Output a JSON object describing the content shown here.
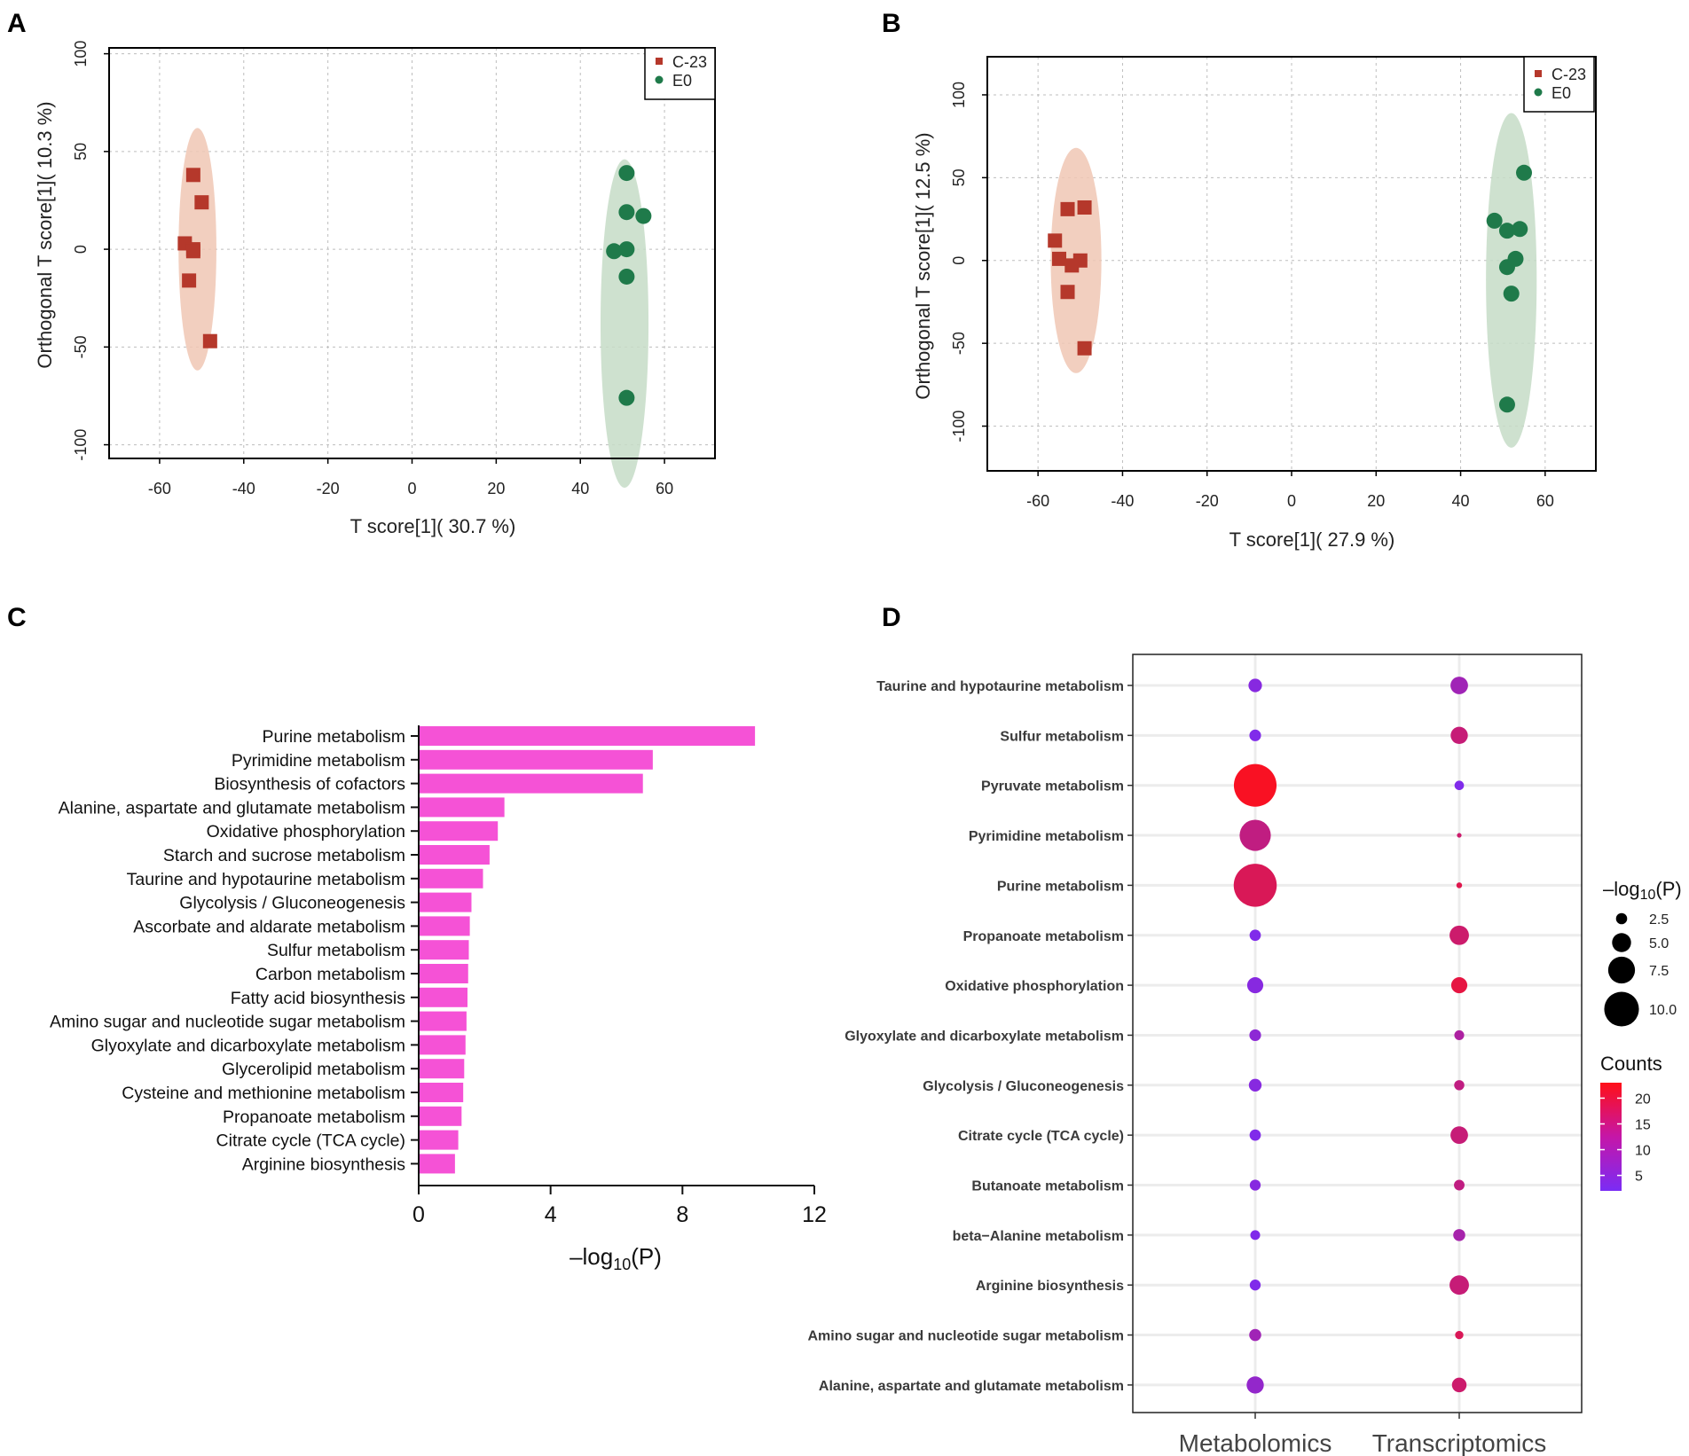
{
  "panels": {
    "a": "A",
    "b": "B",
    "c": "C",
    "d": "D"
  },
  "colors": {
    "c23": "#b5382b",
    "e0": "#1f7a4a",
    "c23_ellipse": "#f0c7b4",
    "e0_ellipse": "#c5dcc7",
    "bar": "#f552d6",
    "count_low": "#7a2cf5",
    "count_high": "#ff1018"
  },
  "chart_data": [
    {
      "id": "A",
      "type": "scatter",
      "xlabel": "T score[1]( 30.7 %)",
      "ylabel": "Orthogonal T score[1]( 10.3 %)",
      "xlim": [
        -72,
        72
      ],
      "ylim": [
        -107,
        103
      ],
      "xticks": [
        -60,
        -40,
        -20,
        0,
        20,
        40,
        60
      ],
      "yticks": [
        -100,
        -50,
        0,
        50,
        100
      ],
      "legend": [
        "C-23",
        "E0"
      ],
      "series": [
        {
          "name": "C-23",
          "marker": "square",
          "points": [
            [
              -52,
              38
            ],
            [
              -50,
              24
            ],
            [
              -54,
              3
            ],
            [
              -52,
              0
            ],
            [
              -52,
              -1
            ],
            [
              -53,
              -16
            ],
            [
              -48,
              -47
            ]
          ],
          "ellipse": {
            "cx": -51,
            "cy": 0,
            "rx": 4.5,
            "ry": 62
          }
        },
        {
          "name": "E0",
          "marker": "circle",
          "points": [
            [
              51,
              39
            ],
            [
              51,
              19
            ],
            [
              55,
              17
            ],
            [
              48,
              -1
            ],
            [
              51,
              0
            ],
            [
              51,
              -14
            ],
            [
              51,
              -76
            ]
          ],
          "ellipse": {
            "cx": 50.5,
            "cy": -38,
            "rx": 5.7,
            "ry": 84
          }
        }
      ]
    },
    {
      "id": "B",
      "type": "scatter",
      "xlabel": "T score[1]( 27.9 %)",
      "ylabel": "Orthogonal T score[1]( 12.5 %)",
      "xlim": [
        -72,
        72
      ],
      "ylim": [
        -127,
        123
      ],
      "xticks": [
        -60,
        -40,
        -20,
        0,
        20,
        40,
        60
      ],
      "yticks": [
        -100,
        -50,
        0,
        50,
        100
      ],
      "legend": [
        "C-23",
        "E0"
      ],
      "series": [
        {
          "name": "C-23",
          "marker": "square",
          "points": [
            [
              -53,
              31
            ],
            [
              -49,
              32
            ],
            [
              -56,
              12
            ],
            [
              -55,
              1
            ],
            [
              -50,
              0
            ],
            [
              -52,
              -3
            ],
            [
              -53,
              -19
            ],
            [
              -49,
              -53
            ]
          ],
          "ellipse": {
            "cx": -51,
            "cy": 0,
            "rx": 6,
            "ry": 68
          }
        },
        {
          "name": "E0",
          "marker": "circle",
          "points": [
            [
              55,
              53
            ],
            [
              48,
              24
            ],
            [
              51,
              18
            ],
            [
              54,
              19
            ],
            [
              51,
              -4
            ],
            [
              53,
              1
            ],
            [
              52,
              -20
            ],
            [
              51,
              -87
            ]
          ],
          "ellipse": {
            "cx": 52,
            "cy": -12,
            "rx": 6,
            "ry": 101
          }
        }
      ]
    },
    {
      "id": "C",
      "type": "bar",
      "orientation": "horizontal",
      "xlabel_main": "–log",
      "xlabel_sub": "10",
      "xlabel_end": "(P)",
      "xlim": [
        0,
        12
      ],
      "xticks": [
        0,
        4,
        8,
        12
      ],
      "categories": [
        "Purine metabolism",
        "Pyrimidine metabolism",
        "Biosynthesis of cofactors",
        "Alanine, aspartate and glutamate metabolism",
        "Oxidative phosphorylation",
        "Starch and sucrose metabolism",
        "Taurine and hypotaurine metabolism",
        "Glycolysis / Gluconeogenesis",
        "Ascorbate and aldarate metabolism",
        "Sulfur metabolism",
        "Carbon metabolism",
        "Fatty acid biosynthesis",
        "Amino sugar and nucleotide sugar metabolism",
        "Glyoxylate and dicarboxylate metabolism",
        "Glycerolipid metabolism",
        "Cysteine and methionine metabolism",
        "Propanoate metabolism",
        "Citrate cycle (TCA cycle)",
        "Arginine biosynthesis"
      ],
      "values": [
        10.2,
        7.1,
        6.8,
        2.6,
        2.4,
        2.15,
        1.95,
        1.6,
        1.55,
        1.52,
        1.5,
        1.48,
        1.45,
        1.42,
        1.38,
        1.35,
        1.3,
        1.2,
        1.1
      ]
    },
    {
      "id": "D",
      "type": "bubble",
      "columns": [
        "Metabolomics",
        "Transcriptomics"
      ],
      "categories": [
        "Taurine and hypotaurine metabolism",
        "Sulfur metabolism",
        "Pyruvate metabolism",
        "Pyrimidine metabolism",
        "Purine metabolism",
        "Propanoate metabolism",
        "Oxidative phosphorylation",
        "Glyoxylate and dicarboxylate metabolism",
        "Glycolysis / Gluconeogenesis",
        "Citrate cycle (TCA cycle)",
        "Butanoate metabolism",
        "beta−Alanine metabolism",
        "Arginine biosynthesis",
        "Amino sugar and nucleotide sugar metabolism",
        "Alanine, aspartate and glutamate metabolism"
      ],
      "metabolomics": {
        "log10p": [
          2.6,
          2.1,
          10.5,
          7.4,
          10.6,
          2.0,
          3.3,
          2.1,
          2.4,
          2.0,
          1.9,
          1.6,
          1.9,
          2.2,
          3.6
        ],
        "counts": [
          4,
          3,
          22,
          13,
          17,
          3,
          4,
          5,
          4,
          3,
          4,
          3,
          3,
          8,
          6
        ]
      },
      "transcriptomics": {
        "log10p": [
          3.7,
          3.6,
          1.5,
          0.2,
          0.5,
          4.2,
          3.3,
          1.6,
          1.7,
          3.7,
          1.8,
          2.2,
          4.2,
          1.2,
          2.9
        ],
        "counts": [
          8,
          14,
          3,
          15,
          18,
          15,
          19,
          10,
          13,
          14,
          13,
          9,
          14,
          17,
          15
        ]
      },
      "size_legend": {
        "title_main": "–log",
        "title_sub": "10",
        "title_end": "(P)",
        "values": [
          2.5,
          5.0,
          7.5,
          10.0
        ],
        "labels": [
          "2.5",
          "5.0",
          "7.5",
          "10.0"
        ]
      },
      "color_legend": {
        "title": "Counts",
        "range": [
          2,
          23
        ],
        "ticks": [
          20,
          15,
          10,
          5
        ],
        "labels": [
          "20",
          "15",
          "10",
          "5"
        ]
      }
    }
  ]
}
